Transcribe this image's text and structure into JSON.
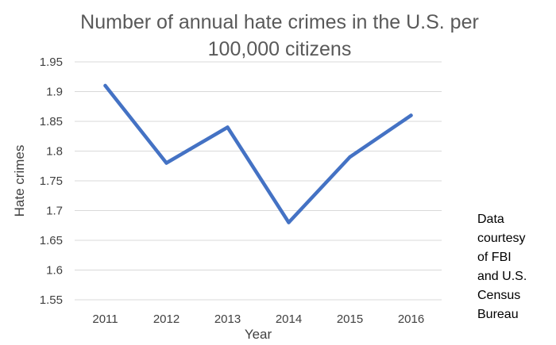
{
  "chart_data": {
    "type": "line",
    "title_lines": [
      "Number of annual hate crimes in the U.S. per",
      "100,000 citizens"
    ],
    "xlabel": "Year",
    "ylabel": "Hate crimes",
    "categories": [
      "2011",
      "2012",
      "2013",
      "2014",
      "2015",
      "2016"
    ],
    "series": [
      {
        "values": [
          1.91,
          1.78,
          1.84,
          1.68,
          1.79,
          1.86
        ]
      }
    ],
    "ylim": [
      1.55,
      1.95
    ],
    "yticks": [
      "1.55",
      "1.6",
      "1.65",
      "1.7",
      "1.75",
      "1.8",
      "1.85",
      "1.9",
      "1.95"
    ],
    "grid": true,
    "legend": false,
    "series_color": "#4472C4",
    "annotation_lines": [
      "Data",
      "courtesy",
      "of FBI",
      "and U.S.",
      "Census",
      "Bureau"
    ]
  }
}
